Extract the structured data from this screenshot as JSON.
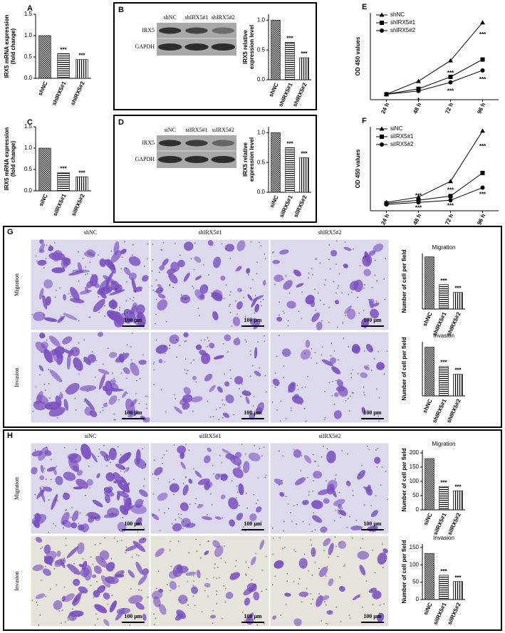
{
  "panels": [
    "A",
    "B",
    "C",
    "D",
    "E",
    "F",
    "G",
    "H"
  ],
  "chart_data": [
    {
      "type": "bar",
      "ylabel": [
        "IRX5 mRNA expression",
        "(fold change)"
      ],
      "categories": [
        "shNC",
        "shIRX5#1",
        "shIRX5#2"
      ],
      "values": [
        1.0,
        0.58,
        0.44
      ],
      "color": "#000000",
      "ylim": [
        0,
        1.5
      ],
      "yticks": [
        {
          "value": 0,
          "label": "0.0"
        },
        {
          "value": 0.5,
          "label": "0.5"
        },
        {
          "value": 1,
          "label": "1.0"
        },
        {
          "value": 1.5,
          "label": "1.5"
        }
      ],
      "annotations": [
        "***",
        "***"
      ]
    },
    {
      "type": "bar",
      "ylabel": [
        "IRX5 relative",
        "expression level"
      ],
      "categories": [
        "shNC",
        "shIRX5#1",
        "shIRX5#2"
      ],
      "values": [
        1.0,
        0.63,
        0.37
      ],
      "color": "#000000",
      "ylim": [
        0,
        1.1
      ],
      "yticks": [
        {
          "value": 0,
          "label": "0.0"
        },
        {
          "value": 0.5,
          "label": "0.5"
        },
        {
          "value": 1,
          "label": "1.0"
        }
      ],
      "annotations": [
        "***",
        "***"
      ]
    },
    {
      "type": "bar",
      "ylabel": [
        "IRX5 mRNA expression",
        "(fold change)"
      ],
      "categories": [
        "siNC",
        "siIRX5#1",
        "siIRX5#2"
      ],
      "values": [
        1.0,
        0.43,
        0.33
      ],
      "color": "#000000",
      "ylim": [
        0,
        1.5
      ],
      "yticks": [
        {
          "value": 0,
          "label": "0.0"
        },
        {
          "value": 0.5,
          "label": "0.5"
        },
        {
          "value": 1,
          "label": "1.0"
        },
        {
          "value": 1.5,
          "label": "1.5"
        }
      ],
      "annotations": [
        "***",
        "***"
      ]
    },
    {
      "type": "bar",
      "ylabel": [
        "IRX5 relative",
        "expression level"
      ],
      "categories": [
        "siNC",
        "siIRX5#1",
        "siIRX5#2"
      ],
      "values": [
        1.0,
        0.75,
        0.58
      ],
      "color": "#000000",
      "ylim": [
        0,
        1.1
      ],
      "yticks": [
        {
          "value": 0,
          "label": "0.0"
        },
        {
          "value": 0.5,
          "label": "0.5"
        },
        {
          "value": 1,
          "label": "1.0"
        }
      ],
      "annotations": [
        "***",
        "***"
      ]
    },
    {
      "type": "line",
      "ylabel": [
        "OD 450 values"
      ],
      "categories": [
        "24 h",
        "48 h",
        "72 h",
        "96 h"
      ],
      "ylim": [
        0,
        0.8
      ],
      "series": [
        {
          "name": "shNC",
          "color": "#000000",
          "marker": "triangle",
          "values": [
            0.05,
            0.17,
            0.36,
            0.71
          ]
        },
        {
          "name": "shIRX5#1",
          "color": "#000000",
          "marker": "square",
          "values": [
            0.05,
            0.1,
            0.21,
            0.37
          ]
        },
        {
          "name": "shIRX5#2",
          "color": "#000000",
          "marker": "circle",
          "values": [
            0.05,
            0.08,
            0.16,
            0.27
          ]
        }
      ],
      "annotations": [
        "*",
        "***",
        "***",
        "***",
        "***"
      ]
    },
    {
      "type": "line",
      "ylabel": [
        "OD 450 values"
      ],
      "categories": [
        "24 h",
        "48 h",
        "72 h",
        "96 h"
      ],
      "ylim": [
        0,
        0.8
      ],
      "series": [
        {
          "name": "siNC",
          "color": "#000000",
          "marker": "triangle",
          "values": [
            0.08,
            0.13,
            0.28,
            0.76
          ]
        },
        {
          "name": "siIRX5#1",
          "color": "#000000",
          "marker": "square",
          "values": [
            0.07,
            0.1,
            0.14,
            0.36
          ]
        },
        {
          "name": "siIRX5#2",
          "color": "#000000",
          "marker": "circle",
          "values": [
            0.06,
            0.08,
            0.1,
            0.22
          ]
        }
      ],
      "annotations": [
        "***",
        "***",
        "***",
        "***",
        "***",
        "***"
      ]
    },
    {
      "type": "bar",
      "title": "Migration",
      "ylabel": [
        "Number of cell per field"
      ],
      "categories": [
        "shNC",
        "shIRX5#1",
        "shIRX5#2"
      ],
      "values": [
        235,
        110,
        75
      ],
      "color": "#000000",
      "ylim": [
        0,
        250
      ],
      "annotations": [
        "***",
        "***"
      ]
    },
    {
      "type": "bar",
      "title": "Invasion",
      "ylabel": [
        "Number of cell per field"
      ],
      "categories": [
        "shNC",
        "shIRX5#1",
        "shIRX5#2"
      ],
      "values": [
        153,
        93,
        68
      ],
      "color": "#000000",
      "ylim": [
        0,
        170
      ],
      "annotations": [
        "***",
        "***"
      ]
    },
    {
      "type": "bar",
      "title": "Migration",
      "ylabel": [
        "Number of cell per field"
      ],
      "categories": [
        "siNC",
        "siIRX5#1",
        "siIRX5#2"
      ],
      "values": [
        180,
        82,
        67
      ],
      "color": "#000000",
      "ylim": [
        0,
        210
      ],
      "yticks": [
        0,
        50,
        100,
        150,
        200
      ],
      "annotations": [
        "***",
        "***"
      ]
    },
    {
      "type": "bar",
      "title": "Invasion",
      "ylabel": [
        "Number of cell per field"
      ],
      "categories": [
        "siNC",
        "siIRX5#1",
        "siIRX5#2"
      ],
      "values": [
        133,
        70,
        52
      ],
      "color": "#000000",
      "ylim": [
        0,
        160
      ],
      "yticks": [
        0,
        50,
        100,
        150
      ],
      "annotations": [
        "***",
        "***"
      ]
    }
  ],
  "blots": [
    {
      "lanes": [
        "shNC",
        "shIRX5#1",
        "shIRX5#2"
      ],
      "rows": [
        "IRX5",
        "GAPDH"
      ]
    },
    {
      "lanes": [
        "siNC",
        "siIRX5#1",
        "siIRX5#2"
      ],
      "rows": [
        "IRX5",
        "GAPDH"
      ]
    }
  ],
  "micrographs": [
    {
      "columns": [
        "shNC",
        "shIRX5#1",
        "shIRX5#2"
      ],
      "rows": [
        "Migration",
        "Invasion"
      ],
      "scale_bar": "100 μm"
    },
    {
      "columns": [
        "siNC",
        "siIRX5#1",
        "siIRX5#2"
      ],
      "rows": [
        "Migration",
        "Invasion"
      ],
      "scale_bar": "100 μm"
    }
  ]
}
